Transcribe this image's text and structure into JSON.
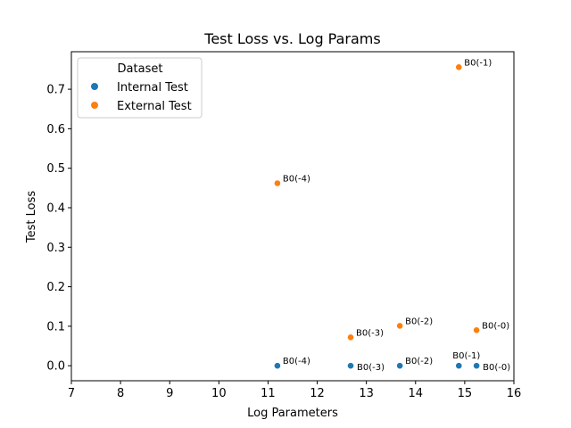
{
  "chart_data": {
    "type": "scatter",
    "title": "Test Loss vs. Log Params",
    "xlabel": "Log Parameters",
    "ylabel": "Test Loss",
    "xlim": [
      7,
      16
    ],
    "ylim": [
      -0.038,
      0.795
    ],
    "xticks": [
      "7",
      "8",
      "9",
      "10",
      "11",
      "12",
      "13",
      "14",
      "15",
      "16"
    ],
    "yticks": [
      "0.0",
      "0.1",
      "0.2",
      "0.3",
      "0.4",
      "0.5",
      "0.6",
      "0.7"
    ],
    "grid": false,
    "legend": {
      "title": "Dataset",
      "placement": "top-left"
    },
    "series": [
      {
        "name": "Internal Test",
        "color": "#1f77b4",
        "points": [
          {
            "x": 11.19,
            "y": 0.0,
            "label": "B0(-4)"
          },
          {
            "x": 12.68,
            "y": 0.0,
            "label": "B0(-3)"
          },
          {
            "x": 13.68,
            "y": 0.0,
            "label": "B0(-2)"
          },
          {
            "x": 14.88,
            "y": 0.0,
            "label": "B0(-1)"
          },
          {
            "x": 15.24,
            "y": 0.0,
            "label": "B0(-0)"
          }
        ]
      },
      {
        "name": "External Test",
        "color": "#ff7f0e",
        "points": [
          {
            "x": 11.19,
            "y": 0.462,
            "label": "B0(-4)"
          },
          {
            "x": 12.68,
            "y": 0.072,
            "label": "B0(-3)"
          },
          {
            "x": 13.68,
            "y": 0.101,
            "label": "B0(-2)"
          },
          {
            "x": 14.88,
            "y": 0.756,
            "label": "B0(-1)"
          },
          {
            "x": 15.24,
            "y": 0.09,
            "label": "B0(-0)"
          }
        ]
      }
    ]
  }
}
